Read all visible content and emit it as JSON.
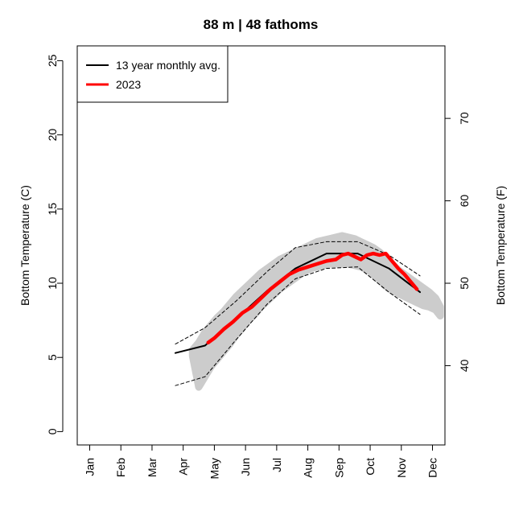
{
  "chart_data": {
    "type": "line",
    "title": "88 m | 48 fathoms",
    "ylabel": "Bottom Temperature (C)",
    "y2label": "Bottom Temperature (F)",
    "xlabel": "",
    "month_labels": [
      "Jan",
      "Feb",
      "Mar",
      "Apr",
      "May",
      "Jun",
      "Jul",
      "Aug",
      "Sep",
      "Oct",
      "Nov",
      "Dec"
    ],
    "x_unit": "month",
    "xlim": [
      0.6,
      12.4
    ],
    "ylim": [
      -0.9,
      26
    ],
    "yticks": [
      0,
      5,
      10,
      15,
      20,
      25
    ],
    "y2ticks": [
      40,
      50,
      60,
      70
    ],
    "grid": false,
    "legend_position": "top-left",
    "legend": [
      {
        "label": "13 year monthly avg.",
        "color": "#000000"
      },
      {
        "label": "2023",
        "color": "#ff0000"
      }
    ],
    "series": [
      {
        "name": "13 year monthly avg.",
        "style": "solid",
        "color": "#000000",
        "x": [
          3.75,
          4.7,
          5.7,
          6.7,
          7.6,
          8.6,
          9.6,
          10.6,
          11.6
        ],
        "y": [
          5.3,
          5.8,
          7.6,
          9.5,
          11.0,
          12.0,
          12.0,
          11.0,
          9.4
        ]
      },
      {
        "name": "",
        "style": "dashed",
        "color": "#000000",
        "x": [
          3.75,
          4.7,
          5.7,
          6.7,
          7.6,
          8.6,
          9.6,
          10.6,
          11.6
        ],
        "y": [
          5.9,
          7.0,
          8.8,
          10.8,
          12.4,
          12.8,
          12.8,
          11.9,
          10.5
        ]
      },
      {
        "name": "",
        "style": "dashed",
        "color": "#000000",
        "x": [
          3.75,
          4.7,
          5.7,
          6.7,
          7.6,
          8.6,
          9.6,
          10.6,
          11.6
        ],
        "y": [
          3.1,
          3.7,
          6.2,
          8.6,
          10.3,
          11.0,
          11.1,
          9.4,
          7.9
        ]
      },
      {
        "name": "2023",
        "style": "thick",
        "color": "#ff0000",
        "x": [
          4.8,
          5.0,
          5.3,
          5.6,
          5.9,
          6.2,
          6.5,
          6.8,
          7.1,
          7.4,
          7.7,
          8.0,
          8.3,
          8.6,
          8.9,
          9.1,
          9.3,
          9.5,
          9.7,
          9.9,
          10.1,
          10.3,
          10.5,
          10.7,
          10.9,
          11.1,
          11.3,
          11.5
        ],
        "y": [
          6.0,
          6.3,
          6.9,
          7.4,
          8.0,
          8.4,
          9.0,
          9.6,
          10.1,
          10.6,
          10.9,
          11.1,
          11.3,
          11.5,
          11.6,
          11.9,
          12.0,
          11.8,
          11.6,
          11.9,
          12.0,
          11.9,
          12.0,
          11.5,
          11.0,
          10.6,
          10.1,
          9.6
        ]
      }
    ],
    "scatter_band": {
      "name": "",
      "color": "#cccccc",
      "x": [
        4.3,
        4.5,
        4.7,
        4.9,
        5.1,
        5.3,
        5.5,
        5.7,
        5.9,
        6.1,
        6.3,
        6.5,
        6.7,
        6.9,
        7.1,
        7.3,
        7.5,
        7.7,
        7.9,
        8.1,
        8.3,
        8.5,
        8.7,
        8.9,
        9.1,
        9.3,
        9.5,
        9.7,
        9.9,
        10.1,
        10.3,
        10.5,
        10.7,
        10.9,
        11.1,
        11.3,
        11.5,
        11.7,
        11.9,
        12.1,
        12.25
      ],
      "y_low": [
        5.1,
        3.0,
        3.7,
        4.4,
        4.9,
        5.4,
        5.9,
        6.5,
        7.0,
        7.5,
        7.9,
        8.4,
        8.8,
        9.2,
        9.6,
        9.9,
        10.2,
        10.5,
        10.8,
        11.0,
        11.1,
        11.2,
        11.3,
        11.3,
        11.3,
        11.3,
        11.2,
        11.1,
        10.9,
        10.6,
        10.2,
        9.8,
        9.5,
        9.3,
        9.1,
        8.9,
        8.7,
        8.5,
        8.4,
        8.2,
        7.8
      ],
      "y_high": [
        5.5,
        6.0,
        6.7,
        7.2,
        7.7,
        8.1,
        8.6,
        9.1,
        9.5,
        9.9,
        10.3,
        10.7,
        11.0,
        11.3,
        11.6,
        11.8,
        12.0,
        12.2,
        12.4,
        12.6,
        12.8,
        12.9,
        13.0,
        13.1,
        13.2,
        13.1,
        13.0,
        12.8,
        12.6,
        12.4,
        12.1,
        11.7,
        11.3,
        10.9,
        10.6,
        10.3,
        10.0,
        9.7,
        9.4,
        9.0,
        8.4
      ]
    }
  }
}
